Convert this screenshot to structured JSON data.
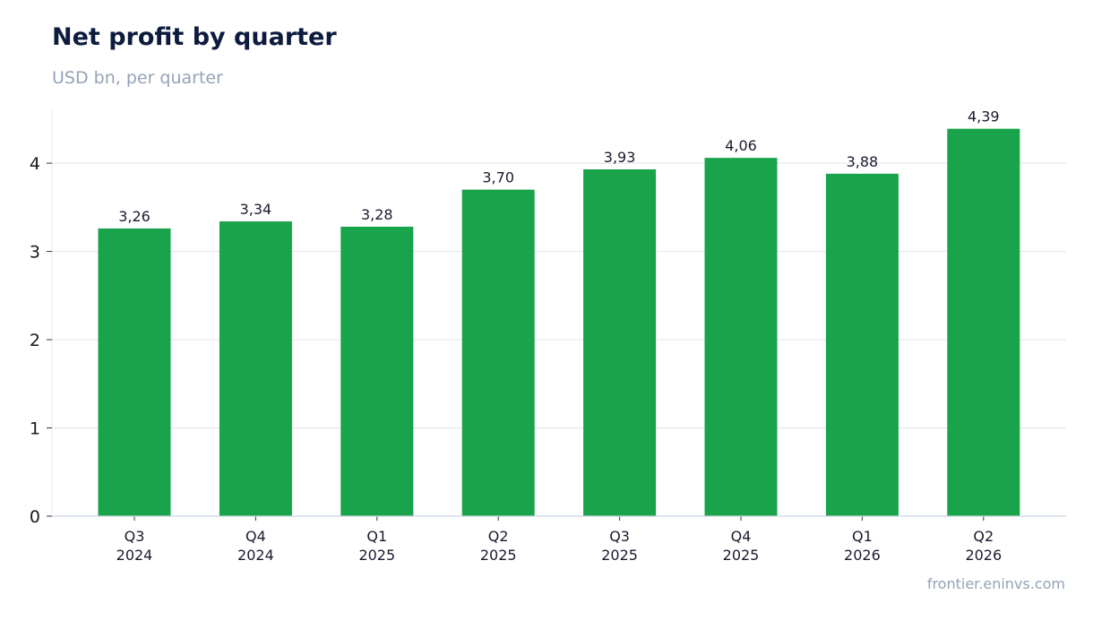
{
  "header": {
    "title": "Net profit by quarter",
    "subtitle": "USD bn, per quarter"
  },
  "footer": {
    "source": "frontier.eninvs.com"
  },
  "colors": {
    "bar": "#19a34a",
    "grid": "#e5e7eb",
    "axis": "#cbd5e1",
    "title": "#0d1b3e",
    "muted": "#94a3b8"
  },
  "chart_data": {
    "type": "bar",
    "title": "Net profit by quarter",
    "subtitle": "USD bn, per quarter",
    "categories": [
      [
        "Q3",
        "2024"
      ],
      [
        "Q4",
        "2024"
      ],
      [
        "Q1",
        "2025"
      ],
      [
        "Q2",
        "2025"
      ],
      [
        "Q3",
        "2025"
      ],
      [
        "Q4",
        "2025"
      ],
      [
        "Q1",
        "2026"
      ],
      [
        "Q2",
        "2026"
      ]
    ],
    "values": [
      3.26,
      3.34,
      3.28,
      3.7,
      3.93,
      4.06,
      3.88,
      4.39
    ],
    "value_labels": [
      "3,26",
      "3,34",
      "3,28",
      "3,70",
      "3,93",
      "4,06",
      "3,88",
      "4,39"
    ],
    "yticks": [
      0,
      1,
      2,
      3,
      4
    ],
    "ylim": [
      0,
      4.6
    ],
    "grid": true,
    "legend": "none"
  }
}
